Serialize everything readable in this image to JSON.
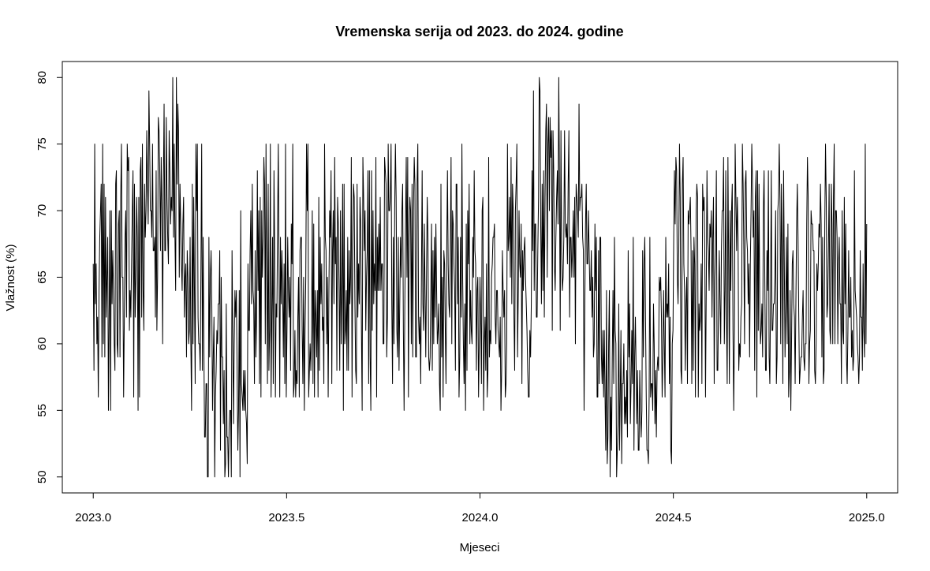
{
  "chart_data": {
    "type": "line",
    "title": "Vremenska serija od 2023. do 2024. godine",
    "xlabel": "Mjeseci",
    "ylabel": "Vlažnost (%)",
    "xlim": [
      2022.92,
      2025.08
    ],
    "ylim": [
      48.8,
      81.2
    ],
    "x_ticks": [
      2023.0,
      2023.5,
      2024.0,
      2024.5,
      2025.0
    ],
    "x_tick_labels": [
      "2023.0",
      "2023.5",
      "2024.0",
      "2024.5",
      "2025.0"
    ],
    "y_ticks": [
      50,
      55,
      60,
      65,
      70,
      75,
      80
    ],
    "y_tick_labels": [
      "50",
      "55",
      "60",
      "65",
      "70",
      "75",
      "80"
    ],
    "grid": false,
    "legend": "none",
    "line_color": "#000000",
    "x_start": 2023.0,
    "x_end": 2025.0,
    "series": [
      {
        "values": [
          66,
          58,
          75,
          63,
          66,
          60,
          62,
          56,
          64,
          68,
          70,
          72,
          59,
          75,
          60,
          72,
          59,
          71,
          62,
          65,
          68,
          55,
          62,
          70,
          55,
          70,
          63,
          67,
          64,
          60,
          58,
          72,
          73,
          60,
          59,
          69,
          70,
          59,
          71,
          75,
          65,
          65,
          56,
          62,
          68,
          70,
          62,
          75,
          73,
          74,
          61,
          64,
          62,
          66,
          70,
          73,
          56,
          72,
          62,
          65,
          71,
          68,
          55,
          71,
          56,
          73,
          74,
          62,
          75,
          64,
          61,
          72,
          68,
          70,
          76,
          72,
          69,
          79,
          75,
          70,
          70,
          68,
          75,
          67,
          67,
          68,
          62,
          73,
          61,
          65,
          77,
          76,
          73,
          67,
          74,
          70,
          60,
          72,
          78,
          67,
          67,
          77,
          71,
          68,
          66,
          76,
          73,
          69,
          71,
          70,
          80,
          68,
          75,
          68,
          64,
          80,
          72,
          78,
          76,
          65,
          72,
          69,
          66,
          64,
          69,
          71,
          62,
          65,
          66,
          59,
          67,
          65,
          60,
          61,
          68,
          60,
          55,
          72,
          60,
          71,
          64,
          57,
          75,
          70,
          75,
          62,
          60,
          60,
          58,
          66,
          75,
          58,
          68,
          60,
          53,
          53,
          57,
          57,
          50,
          50,
          68,
          59,
          65,
          67,
          63,
          55,
          59,
          62,
          50,
          56,
          58,
          61,
          60,
          63,
          63,
          67,
          52,
          65,
          59,
          59,
          54,
          58,
          50,
          51,
          63,
          53,
          53,
          50,
          54,
          55,
          55,
          50,
          67,
          61,
          54,
          60,
          64,
          62,
          64,
          58,
          52,
          55,
          64,
          50,
          70,
          57,
          56,
          55,
          58,
          55,
          58,
          55,
          54,
          51,
          66,
          61,
          61,
          67,
          70,
          63,
          72,
          64,
          63,
          57,
          67,
          59,
          62,
          73,
          64,
          70,
          57,
          71,
          56,
          70,
          65,
          68,
          74,
          72,
          60,
          75,
          65,
          57,
          72,
          58,
          61,
          75,
          56,
          62,
          68,
          57,
          73,
          67,
          56,
          63,
          62,
          69,
          75,
          66,
          56,
          68,
          63,
          67,
          64,
          59,
          66,
          57,
          75,
          56,
          61,
          68,
          64,
          62,
          65,
          58,
          69,
          66,
          75,
          56,
          57,
          61,
          56,
          58,
          57,
          62,
          65,
          56,
          67,
          68,
          68,
          61,
          57,
          65,
          55,
          61,
          65,
          75,
          70,
          75,
          56,
          58,
          60,
          58,
          61,
          70,
          57,
          69,
          56,
          64,
          62,
          59,
          64,
          56,
          71,
          58,
          68,
          63,
          66,
          61,
          62,
          57,
          75,
          68,
          67,
          60,
          65,
          56,
          64,
          70,
          68,
          73,
          57,
          67,
          70,
          63,
          74,
          66,
          68,
          58,
          71,
          69,
          64,
          58,
          70,
          60,
          64,
          72,
          55,
          72,
          60,
          61,
          64,
          58,
          68,
          58,
          67,
          63,
          65,
          74,
          56,
          67,
          72,
          71,
          63,
          58,
          57,
          72,
          62,
          66,
          63,
          71,
          69,
          61,
          55,
          74,
          71,
          67,
          70,
          61,
          65,
          67,
          73,
          57,
          73,
          59,
          55,
          73,
          61,
          70,
          63,
          66,
          64,
          74,
          56,
          68,
          64,
          69,
          64,
          71,
          64,
          66,
          66,
          60,
          60,
          74,
          73,
          72,
          59,
          62,
          75,
          70,
          70,
          71,
          75,
          63,
          57,
          68,
          60,
          70,
          75,
          71,
          61,
          59,
          68,
          58,
          63,
          68,
          65,
          70,
          72,
          61,
          55,
          63,
          69,
          74,
          65,
          74,
          56,
          68,
          71,
          70,
          60,
          72,
          59,
          70,
          74,
          72,
          59,
          59,
          72,
          75,
          62,
          60,
          62,
          57,
          65,
          73,
          63,
          61,
          69,
          64,
          59,
          65,
          71,
          68,
          59,
          58,
          59,
          64,
          69,
          58,
          67,
          60,
          68,
          62,
          69,
          64,
          60,
          61,
          63,
          57,
          55,
          72,
          59,
          65,
          56,
          67,
          66,
          61,
          57,
          67,
          73,
          66,
          63,
          62,
          67,
          74,
          60,
          70,
          69,
          66,
          64,
          58,
          72,
          72,
          63,
          68,
          56,
          59,
          68,
          62,
          75,
          65,
          60,
          57,
          63,
          55,
          69,
          58,
          70,
          66,
          72,
          60,
          64,
          61,
          60,
          68,
          65,
          73,
          67,
          66,
          58,
          64,
          65,
          56,
          60,
          65,
          62,
          57,
          70,
          71,
          55,
          60,
          62,
          58,
          66,
          56,
          58,
          74,
          59,
          61,
          60,
          65,
          66,
          68,
          68,
          69,
          62,
          60,
          64,
          64,
          61,
          60,
          59,
          62,
          55,
          58,
          67,
          64,
          62,
          64,
          56,
          57,
          60,
          75,
          67,
          68,
          71,
          65,
          74,
          63,
          72,
          70,
          62,
          58,
          70,
          72,
          75,
          59,
          64,
          70,
          66,
          65,
          69,
          57,
          67,
          64,
          67,
          68,
          65,
          63,
          61,
          58,
          56,
          56,
          61,
          59,
          63,
          73,
          67,
          79,
          64,
          69,
          69,
          62,
          62,
          67,
          71,
          80,
          79,
          69,
          63,
          72,
          64,
          73,
          62,
          71,
          76,
          78,
          65,
          75,
          77,
          70,
          77,
          74,
          76,
          61,
          76,
          73,
          66,
          64,
          68,
          71,
          73,
          69,
          80,
          72,
          61,
          76,
          67,
          64,
          65,
          68,
          76,
          69,
          68,
          69,
          66,
          72,
          76,
          62,
          68,
          68,
          65,
          67,
          70,
          65,
          71,
          60,
          72,
          71,
          70,
          68,
          78,
          70,
          71,
          71,
          72,
          68,
          67,
          55,
          63,
          69,
          72,
          66,
          66,
          70,
          67,
          64,
          64,
          67,
          62,
          65,
          59,
          60,
          69,
          64,
          68,
          56,
          56,
          67,
          57,
          68,
          68,
          59,
          57,
          61,
          56,
          61,
          56,
          52,
          64,
          51,
          53,
          60,
          64,
          50,
          56,
          52,
          59,
          64,
          57,
          68,
          61,
          60,
          50,
          52,
          54,
          63,
          52,
          56,
          61,
          51,
          57,
          57,
          60,
          54,
          56,
          54,
          58,
          53,
          67,
          59,
          63,
          54,
          57,
          61,
          57,
          68,
          52,
          59,
          62,
          58,
          54,
          58,
          52,
          52,
          58,
          55,
          53,
          55,
          67,
          59,
          66,
          68,
          62,
          56,
          52,
          52,
          51,
          56,
          68,
          56,
          57,
          57,
          55,
          63,
          60,
          54,
          58,
          53,
          58,
          59,
          58,
          65,
          64,
          65,
          62,
          56,
          59,
          64,
          60,
          56,
          68,
          62,
          63,
          62,
          66,
          57,
          62,
          52,
          51,
          60,
          61,
          68,
          73,
          69,
          74,
          73,
          65,
          63,
          67,
          75,
          71,
          58,
          57,
          72,
          74,
          66,
          64,
          58,
          63,
          65,
          57,
          70,
          69,
          70,
          71,
          67,
          57,
          67,
          58,
          68,
          66,
          56,
          70,
          72,
          71,
          56,
          63,
          61,
          62,
          66,
          57,
          72,
          70,
          71,
          67,
          56,
          64,
          73,
          68,
          67,
          64,
          69,
          68,
          70,
          62,
          68,
          71,
          57,
          65,
          67,
          73,
          58,
          58,
          63,
          67,
          63,
          60,
          67,
          70,
          70,
          74,
          60,
          64,
          73,
          62,
          57,
          74,
          66,
          57,
          70,
          64,
          70,
          72,
          61,
          55,
          61,
          75,
          71,
          67,
          71,
          68,
          58,
          60,
          59,
          62,
          63,
          75,
          72,
          67,
          60,
          72,
          73,
          68,
          67,
          63,
          66,
          59,
          66,
          70,
          75,
          72,
          68,
          70,
          58,
          71,
          73,
          56,
          73,
          61,
          72,
          63,
          60,
          61,
          63,
          59,
          70,
          73,
          65,
          58,
          58,
          67,
          64,
          73,
          59,
          57,
          64,
          73,
          61,
          61,
          63,
          63,
          65,
          70,
          57,
          59,
          70,
          71,
          75,
          71,
          60,
          72,
          67,
          57,
          73,
          66,
          59,
          63,
          68,
          60,
          69,
          56,
          58,
          64,
          55,
          60,
          66,
          67,
          63,
          62,
          57,
          63,
          69,
          72,
          68,
          62,
          57,
          58,
          59,
          59,
          62,
          64,
          59,
          58,
          60,
          60,
          69,
          74,
          71,
          57,
          60,
          61,
          70,
          69,
          69,
          67,
          67,
          58,
          57,
          60,
          66,
          64,
          66,
          69,
          68,
          72,
          69,
          59,
          68,
          57,
          58,
          69,
          75,
          71,
          62,
          63,
          67,
          72,
          61,
          60,
          72,
          69,
          60,
          71,
          75,
          60,
          70,
          70,
          68,
          60,
          66,
          68,
          63,
          63,
          57,
          70,
          61,
          60,
          71,
          63,
          69,
          59,
          57,
          61,
          67,
          62,
          62,
          65,
          59,
          61,
          58,
          59,
          73,
          64,
          63,
          62,
          60,
          59,
          57,
          59,
          67,
          62,
          62,
          58,
          66,
          61,
          59,
          75,
          60,
          69
        ]
      }
    ]
  }
}
